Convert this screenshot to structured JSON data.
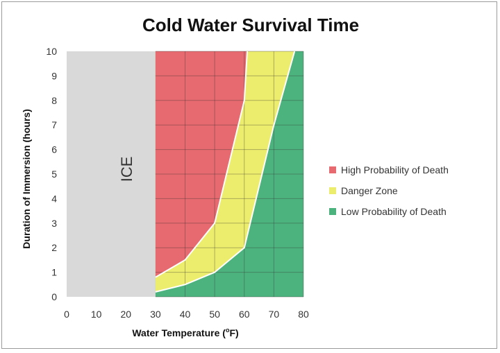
{
  "chart_data": {
    "type": "area",
    "title": "Cold Water Survival Time",
    "xlabel": "Water Temperature (°F)",
    "xlabel_main": "Water Temperature (",
    "xlabel_sup": "o",
    "xlabel_end": "F)",
    "ylabel": "Duration of Immersion (hours)",
    "xlim": [
      0,
      80
    ],
    "ylim": [
      0,
      10
    ],
    "xticks": [
      "0",
      "10",
      "20",
      "30",
      "40",
      "50",
      "60",
      "70",
      "80"
    ],
    "yticks": [
      "0",
      "1",
      "2",
      "3",
      "4",
      "5",
      "6",
      "7",
      "8",
      "9",
      "10"
    ],
    "grid": true,
    "legend_position": "right",
    "ice_region": {
      "label": "ICE",
      "x_range": [
        0,
        30
      ],
      "color": "#d9d9d9"
    },
    "boundaries": {
      "red_yellow": {
        "x": [
          30,
          40,
          50,
          60,
          61
        ],
        "y": [
          0.8,
          1.5,
          3,
          8,
          10
        ]
      },
      "yellow_green": {
        "x": [
          30,
          40,
          50,
          60,
          70,
          77
        ],
        "y": [
          0.2,
          0.5,
          1,
          2,
          7,
          10
        ]
      }
    },
    "series": [
      {
        "name": "High Probability of Death",
        "color": "#e66a6f"
      },
      {
        "name": "Danger Zone",
        "color": "#eded6d"
      },
      {
        "name": "Low Probability of Death",
        "color": "#4db37e"
      }
    ]
  }
}
